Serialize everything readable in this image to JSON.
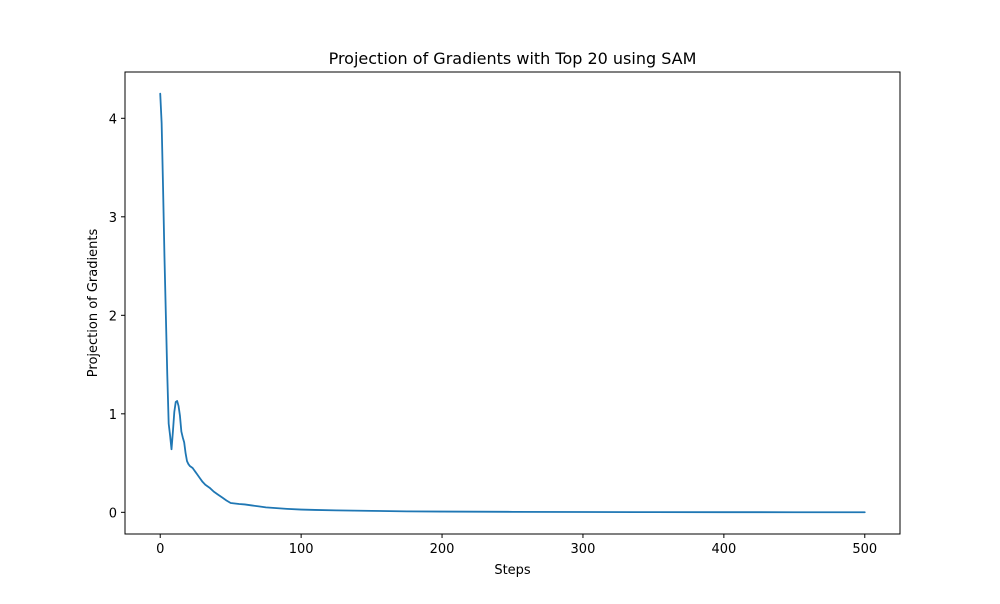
{
  "chart_data": {
    "type": "line",
    "title": "Projection of Gradients with Top 20 using SAM",
    "xlabel": "Steps",
    "ylabel": "Projection of Gradients",
    "xlim": [
      -25,
      525
    ],
    "ylim": [
      -0.22,
      4.47
    ],
    "xticks": [
      0,
      100,
      200,
      300,
      400,
      500
    ],
    "yticks": [
      0,
      1,
      2,
      3,
      4
    ],
    "grid": false,
    "legend": "none",
    "line_color": "#1f77b4",
    "series": [
      {
        "x": [
          0,
          1,
          2,
          3,
          4,
          5,
          6,
          7,
          8,
          9,
          10,
          11,
          12,
          13,
          14,
          15,
          16,
          17,
          18,
          19,
          20,
          21,
          22,
          23,
          24,
          25,
          26,
          28,
          30,
          32,
          35,
          38,
          41,
          44,
          47,
          50,
          53,
          56,
          60,
          65,
          70,
          75,
          80,
          90,
          100,
          110,
          125,
          150,
          175,
          200,
          250,
          300,
          350,
          400,
          450,
          500
        ],
        "y": [
          4.25,
          3.95,
          3.3,
          2.6,
          2.0,
          1.4,
          0.9,
          0.78,
          0.64,
          0.82,
          1.02,
          1.12,
          1.13,
          1.08,
          0.98,
          0.82,
          0.76,
          0.71,
          0.6,
          0.52,
          0.49,
          0.47,
          0.46,
          0.45,
          0.43,
          0.41,
          0.39,
          0.35,
          0.31,
          0.28,
          0.25,
          0.21,
          0.18,
          0.15,
          0.12,
          0.095,
          0.09,
          0.085,
          0.08,
          0.07,
          0.06,
          0.05,
          0.045,
          0.035,
          0.028,
          0.024,
          0.02,
          0.015,
          0.01,
          0.008,
          0.005,
          0.003,
          0.002,
          0.0015,
          0.001,
          0.001
        ]
      }
    ]
  }
}
